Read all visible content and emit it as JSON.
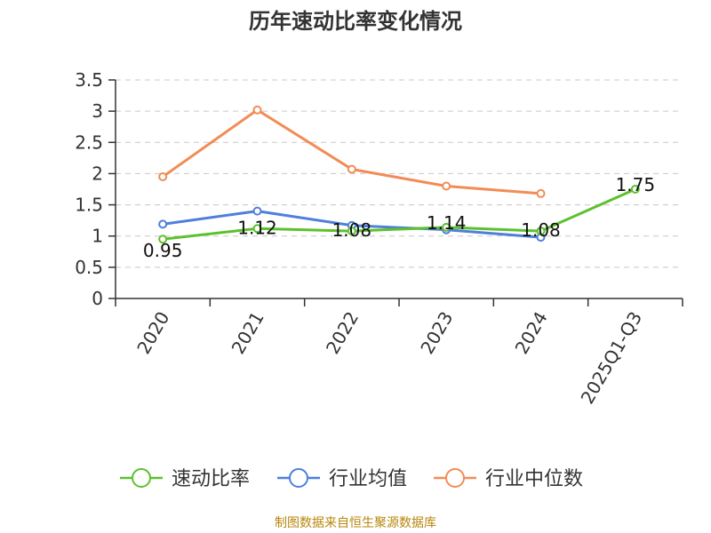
{
  "chart_data": {
    "type": "line",
    "title": "历年速动比率变化情况",
    "categories": [
      "2020",
      "2021",
      "2022",
      "2023",
      "2024",
      "2025Q1-Q3"
    ],
    "ylim": [
      0,
      3.5
    ],
    "yticks": [
      "0",
      "0.5",
      "1",
      "1.5",
      "2",
      "2.5",
      "3",
      "3.5"
    ],
    "grid": true,
    "legend_position": "bottom",
    "series": [
      {
        "name": "速动比率",
        "color": "#5cc12e",
        "values": [
          0.95,
          1.12,
          1.08,
          1.14,
          1.08,
          1.75
        ],
        "labels": [
          "0.95",
          "1.12",
          "1.08",
          "1.14",
          "1.08",
          "1.75"
        ]
      },
      {
        "name": "行业均值",
        "color": "#4e7fdb",
        "values": [
          1.19,
          1.4,
          1.17,
          1.1,
          0.98,
          null
        ]
      },
      {
        "name": "行业中位数",
        "color": "#f28c56",
        "values": [
          1.95,
          3.02,
          2.07,
          1.8,
          1.68,
          null
        ]
      }
    ]
  },
  "source_note": "制图数据来自恒生聚源数据库"
}
